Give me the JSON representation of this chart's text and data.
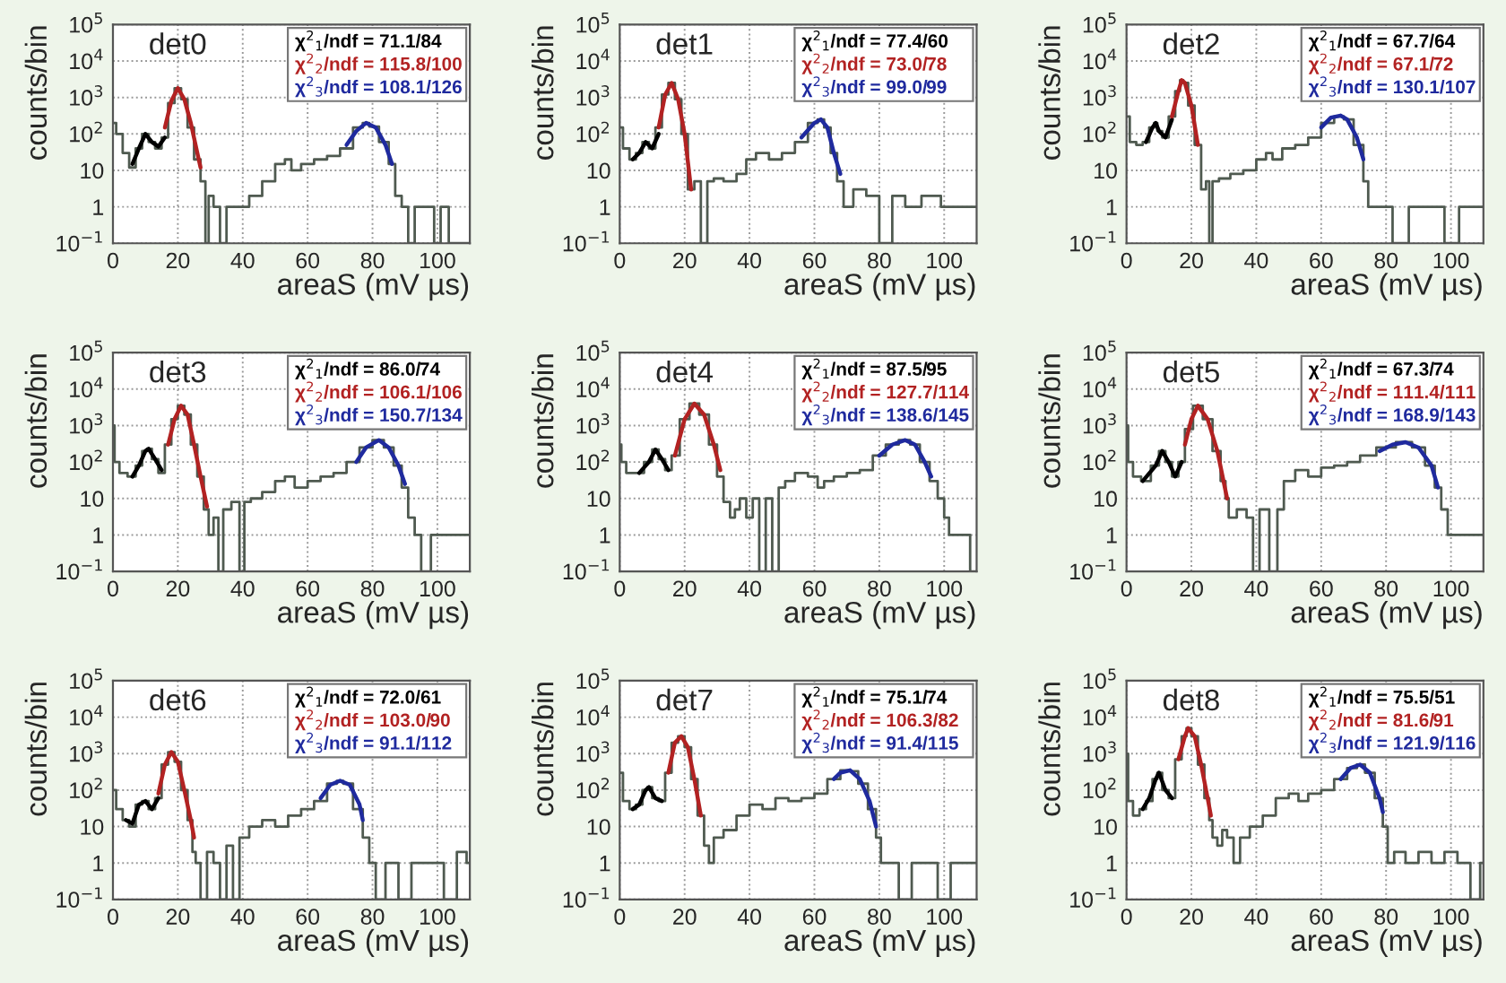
{
  "chart_data": [
    {
      "type": "line",
      "xlabel": "areaS (mV µs)",
      "ylabel": "counts/bin",
      "annotations": [
        "det0",
        "χ$^{2}$$_{1}$/ndf = 71.1/84",
        "χ$^{2}$$_{2}$/ndf = 115.8/100",
        "χ$^{2}$$_{3}$/ndf = 108.1/126"
      ],
      "log": "y",
      "xlim": [
        0,
        110
      ],
      "xticks": [
        0,
        20,
        40,
        60,
        80,
        100
      ],
      "ylim": [
        0.1,
        100000
      ],
      "yticks": [
        {
          "value": 0.1,
          "label": "10$^{−1}$"
        },
        1,
        10,
        {
          "value": 100,
          "label": "10$^{2}$"
        },
        {
          "value": 1000,
          "label": "10$^{3}$"
        },
        {
          "value": 10000,
          "label": "10$^{4}$"
        },
        {
          "value": 100000,
          "label": "10$^{5}$"
        }
      ],
      "grid": true,
      "series": [
        {
          "type": "step",
          "color": "#4f5a50",
          "x": [
            0,
            2,
            4,
            6,
            8,
            10,
            12,
            14,
            16,
            18,
            20,
            22,
            24,
            26,
            28,
            29,
            30,
            32,
            34,
            36,
            40,
            44,
            48,
            52,
            54,
            56,
            60,
            64,
            68,
            72,
            76,
            78,
            80,
            84,
            86,
            88,
            90,
            92,
            94,
            98,
            100,
            102,
            105,
            110
          ],
          "values": [
            200,
            100,
            30,
            12,
            40,
            100,
            60,
            40,
            80,
            700,
            1800,
            900,
            150,
            20,
            5,
            0.1,
            2,
            1,
            0.1,
            1,
            1,
            2,
            5,
            15,
            20,
            10,
            15,
            20,
            25,
            40,
            150,
            200,
            160,
            60,
            15,
            2,
            1,
            0.1,
            1,
            1,
            0.1,
            1,
            0.1,
            0.1
          ]
        },
        {
          "type": "line",
          "color": "#000000",
          "x": [
            6,
            8,
            10,
            12,
            14,
            16
          ],
          "values": [
            15,
            40,
            100,
            60,
            45,
            80
          ]
        },
        {
          "type": "line",
          "color": "#b22222",
          "x": [
            16,
            18,
            20,
            22,
            24,
            26,
            27
          ],
          "values": [
            150,
            800,
            1800,
            900,
            200,
            30,
            12
          ]
        },
        {
          "type": "line",
          "color": "#1f2a9e",
          "x": [
            72,
            75,
            78,
            81,
            84,
            86
          ],
          "values": [
            50,
            120,
            200,
            150,
            50,
            15
          ]
        }
      ]
    },
    {
      "type": "line",
      "xlabel": "areaS (mV µs)",
      "ylabel": "counts/bin",
      "annotations": [
        "det1",
        "χ$^{2}$$_{1}$/ndf = 77.4/60",
        "χ$^{2}$$_{2}$/ndf = 73.0/78",
        "χ$^{2}$$_{3}$/ndf = 99.0/99"
      ],
      "log": "y",
      "xlim": [
        0,
        110
      ],
      "xticks": [
        0,
        20,
        40,
        60,
        80,
        100
      ],
      "ylim": [
        0.1,
        100000
      ],
      "yticks": [
        {
          "value": 0.1,
          "label": "10$^{−1}$"
        },
        1,
        10,
        {
          "value": 100,
          "label": "10$^{2}$"
        },
        {
          "value": 1000,
          "label": "10$^{3}$"
        },
        {
          "value": 10000,
          "label": "10$^{4}$"
        },
        {
          "value": 100000,
          "label": "10$^{5}$"
        }
      ],
      "grid": true,
      "series": [
        {
          "type": "step",
          "color": "#4f5a50",
          "x": [
            0,
            2,
            4,
            6,
            8,
            10,
            12,
            14,
            16,
            18,
            20,
            22,
            24,
            26,
            28,
            30,
            34,
            38,
            40,
            44,
            48,
            52,
            56,
            60,
            62,
            64,
            66,
            68,
            70,
            74,
            78,
            82,
            86,
            90,
            96,
            102,
            106,
            110
          ],
          "values": [
            150,
            40,
            20,
            30,
            60,
            40,
            150,
            1200,
            2500,
            900,
            100,
            3,
            5,
            0.1,
            5,
            6,
            5,
            8,
            20,
            30,
            20,
            30,
            60,
            200,
            250,
            150,
            30,
            5,
            1,
            3,
            2,
            0.1,
            2,
            1,
            2,
            1,
            1,
            1
          ]
        },
        {
          "type": "line",
          "color": "#000000",
          "x": [
            4,
            6,
            8,
            10,
            12
          ],
          "values": [
            20,
            30,
            60,
            40,
            100
          ]
        },
        {
          "type": "line",
          "color": "#b22222",
          "x": [
            12,
            14,
            16,
            18,
            20,
            22
          ],
          "values": [
            150,
            1200,
            2500,
            900,
            100,
            3
          ]
        },
        {
          "type": "line",
          "color": "#1f2a9e",
          "x": [
            56,
            60,
            62,
            64,
            66,
            68
          ],
          "values": [
            80,
            200,
            250,
            150,
            30,
            8
          ]
        }
      ]
    },
    {
      "type": "line",
      "xlabel": "areaS (mV µs)",
      "ylabel": "counts/bin",
      "annotations": [
        "det2",
        "χ$^{2}$$_{1}$/ndf = 67.7/64",
        "χ$^{2}$$_{2}$/ndf = 67.1/72",
        "χ$^{2}$$_{3}$/ndf = 130.1/107"
      ],
      "log": "y",
      "xlim": [
        0,
        110
      ],
      "xticks": [
        0,
        20,
        40,
        60,
        80,
        100
      ],
      "ylim": [
        0.1,
        100000
      ],
      "yticks": [
        {
          "value": 0.1,
          "label": "10$^{−1}$"
        },
        1,
        10,
        {
          "value": 100,
          "label": "10$^{2}$"
        },
        {
          "value": 1000,
          "label": "10$^{3}$"
        },
        {
          "value": 10000,
          "label": "10$^{4}$"
        },
        {
          "value": 100000,
          "label": "10$^{5}$"
        }
      ],
      "grid": true,
      "series": [
        {
          "type": "step",
          "color": "#4f5a50",
          "x": [
            0,
            2,
            4,
            6,
            8,
            9,
            10,
            12,
            14,
            16,
            17,
            18,
            20,
            22,
            24,
            25,
            26,
            27,
            30,
            34,
            38,
            42,
            44,
            46,
            50,
            54,
            58,
            62,
            66,
            68,
            72,
            74,
            75,
            80,
            84,
            90,
            96,
            100,
            105,
            110
          ],
          "values": [
            300,
            60,
            50,
            60,
            150,
            200,
            120,
            80,
            300,
            1500,
            3000,
            2500,
            600,
            50,
            3,
            5,
            0.1,
            5,
            6,
            8,
            10,
            20,
            30,
            20,
            40,
            50,
            80,
            200,
            300,
            250,
            50,
            5,
            1,
            1,
            0.1,
            1,
            1,
            0.1,
            1,
            1
          ]
        },
        {
          "type": "line",
          "color": "#000000",
          "x": [
            6,
            8,
            9,
            10,
            12,
            14
          ],
          "values": [
            60,
            150,
            200,
            120,
            80,
            250
          ]
        },
        {
          "type": "line",
          "color": "#b22222",
          "x": [
            14,
            16,
            17,
            18,
            20,
            22
          ],
          "values": [
            300,
            1500,
            3000,
            2500,
            600,
            50
          ]
        },
        {
          "type": "line",
          "color": "#1f2a9e",
          "x": [
            60,
            63,
            66,
            68,
            71,
            73
          ],
          "values": [
            150,
            280,
            320,
            250,
            80,
            20
          ]
        }
      ]
    },
    {
      "type": "line",
      "xlabel": "areaS (mV µs)",
      "ylabel": "counts/bin",
      "annotations": [
        "det3",
        "χ$^{2}$$_{1}$/ndf = 86.0/74",
        "χ$^{2}$$_{2}$/ndf = 106.1/106",
        "χ$^{2}$$_{3}$/ndf = 150.7/134"
      ],
      "log": "y",
      "xlim": [
        0,
        110
      ],
      "xticks": [
        0,
        20,
        40,
        60,
        80,
        100
      ],
      "ylim": [
        0.1,
        100000
      ],
      "yticks": [
        {
          "value": 0.1,
          "label": "10$^{−1}$"
        },
        1,
        10,
        {
          "value": 100,
          "label": "10$^{2}$"
        },
        {
          "value": 1000,
          "label": "10$^{3}$"
        },
        {
          "value": 10000,
          "label": "10$^{4}$"
        },
        {
          "value": 100000,
          "label": "10$^{5}$"
        }
      ],
      "grid": true,
      "series": [
        {
          "type": "step",
          "color": "#4f5a50",
          "x": [
            0,
            1,
            3,
            6,
            8,
            10,
            11,
            13,
            15,
            17,
            19,
            21,
            23,
            25,
            27,
            29,
            30,
            32,
            33,
            35,
            38,
            40,
            41,
            44,
            48,
            52,
            54,
            58,
            62,
            66,
            70,
            74,
            78,
            82,
            85,
            88,
            90,
            92,
            94,
            96,
            100,
            104,
            108,
            110
          ],
          "values": [
            1000,
            100,
            50,
            40,
            80,
            200,
            230,
            120,
            50,
            300,
            1500,
            3500,
            2000,
            300,
            40,
            5,
            1,
            3,
            0.1,
            5,
            8,
            0.1,
            8,
            10,
            15,
            30,
            40,
            20,
            30,
            40,
            50,
            100,
            250,
            400,
            250,
            80,
            20,
            3,
            1,
            0.1,
            1,
            1,
            1,
            1
          ]
        },
        {
          "type": "line",
          "color": "#000000",
          "x": [
            6,
            8,
            10,
            11,
            13,
            15
          ],
          "values": [
            40,
            80,
            200,
            230,
            120,
            60
          ]
        },
        {
          "type": "line",
          "color": "#b22222",
          "x": [
            17,
            19,
            21,
            23,
            25,
            27,
            29
          ],
          "values": [
            300,
            1500,
            3500,
            2000,
            300,
            40,
            6
          ]
        },
        {
          "type": "line",
          "color": "#1f2a9e",
          "x": [
            75,
            78,
            82,
            85,
            88,
            90
          ],
          "values": [
            100,
            250,
            400,
            250,
            80,
            25
          ]
        }
      ]
    },
    {
      "type": "line",
      "xlabel": "areaS (mV µs)",
      "ylabel": "counts/bin",
      "annotations": [
        "det4",
        "χ$^{2}$$_{1}$/ndf = 87.5/95",
        "χ$^{2}$$_{2}$/ndf = 127.7/114",
        "χ$^{2}$$_{3}$/ndf = 138.6/145"
      ],
      "log": "y",
      "xlim": [
        0,
        110
      ],
      "xticks": [
        0,
        20,
        40,
        60,
        80,
        100
      ],
      "ylim": [
        0.1,
        100000
      ],
      "yticks": [
        {
          "value": 0.1,
          "label": "10$^{−1}$"
        },
        1,
        10,
        {
          "value": 100,
          "label": "10$^{2}$"
        },
        {
          "value": 1000,
          "label": "10$^{3}$"
        },
        {
          "value": 10000,
          "label": "10$^{4}$"
        },
        {
          "value": 100000,
          "label": "10$^{5}$"
        }
      ],
      "grid": true,
      "series": [
        {
          "type": "step",
          "color": "#4f5a50",
          "x": [
            0,
            1,
            3,
            6,
            9,
            11,
            13,
            15,
            17,
            20,
            23,
            26,
            29,
            31,
            33,
            35,
            36,
            38,
            40,
            42,
            44,
            46,
            48,
            50,
            52,
            56,
            60,
            62,
            64,
            68,
            72,
            76,
            80,
            84,
            88,
            91,
            94,
            97,
            99,
            101,
            102,
            106,
            110
          ],
          "values": [
            300,
            100,
            50,
            50,
            100,
            220,
            120,
            60,
            150,
            1500,
            4000,
            2000,
            300,
            40,
            8,
            3,
            5,
            10,
            3,
            10,
            0.1,
            10,
            0.1,
            20,
            30,
            50,
            40,
            20,
            30,
            40,
            50,
            60,
            150,
            300,
            400,
            300,
            100,
            30,
            10,
            3,
            1,
            1,
            0.1
          ]
        },
        {
          "type": "line",
          "color": "#000000",
          "x": [
            6,
            9,
            11,
            13,
            15
          ],
          "values": [
            50,
            100,
            220,
            120,
            60
          ]
        },
        {
          "type": "line",
          "color": "#b22222",
          "x": [
            17,
            20,
            23,
            26,
            29,
            31
          ],
          "values": [
            150,
            1500,
            4000,
            2000,
            300,
            60
          ]
        },
        {
          "type": "line",
          "color": "#1f2a9e",
          "x": [
            80,
            84,
            88,
            91,
            94,
            96
          ],
          "values": [
            150,
            300,
            400,
            300,
            100,
            40
          ]
        }
      ]
    },
    {
      "type": "line",
      "xlabel": "areaS (mV µs)",
      "ylabel": "counts/bin",
      "annotations": [
        "det5",
        "χ$^{2}$$_{1}$/ndf = 67.3/74",
        "χ$^{2}$$_{2}$/ndf = 111.4/111",
        "χ$^{2}$$_{3}$/ndf = 168.9/143"
      ],
      "log": "y",
      "xlim": [
        0,
        110
      ],
      "xticks": [
        0,
        20,
        40,
        60,
        80,
        100
      ],
      "ylim": [
        0.1,
        100000
      ],
      "yticks": [
        {
          "value": 0.1,
          "label": "10$^{−1}$"
        },
        1,
        10,
        {
          "value": 100,
          "label": "10$^{2}$"
        },
        {
          "value": 1000,
          "label": "10$^{3}$"
        },
        {
          "value": 10000,
          "label": "10$^{4}$"
        },
        {
          "value": 100000,
          "label": "10$^{5}$"
        }
      ],
      "grid": true,
      "series": [
        {
          "type": "step",
          "color": "#4f5a50",
          "x": [
            0,
            1,
            3,
            6,
            9,
            11,
            13,
            15,
            17,
            19,
            22,
            25,
            28,
            30,
            31,
            32,
            36,
            38,
            40,
            42,
            46,
            47,
            50,
            54,
            58,
            62,
            66,
            70,
            74,
            80,
            86,
            90,
            94,
            96,
            98,
            100,
            104,
            108,
            110
          ],
          "values": [
            1000,
            100,
            40,
            30,
            80,
            200,
            100,
            40,
            100,
            800,
            3500,
            1500,
            200,
            30,
            10,
            3,
            5,
            3,
            0.1,
            5,
            0.1,
            5,
            30,
            60,
            40,
            70,
            80,
            100,
            150,
            250,
            350,
            250,
            80,
            20,
            5,
            1,
            1,
            1,
            1
          ]
        },
        {
          "type": "line",
          "color": "#000000",
          "x": [
            5,
            9,
            11,
            13,
            15,
            17
          ],
          "values": [
            30,
            80,
            200,
            100,
            40,
            100
          ]
        },
        {
          "type": "line",
          "color": "#b22222",
          "x": [
            18,
            20,
            22,
            25,
            28,
            31
          ],
          "values": [
            300,
            1500,
            3500,
            1500,
            200,
            10
          ]
        },
        {
          "type": "line",
          "color": "#1f2a9e",
          "x": [
            78,
            82,
            86,
            90,
            94,
            96
          ],
          "values": [
            200,
            300,
            350,
            250,
            80,
            20
          ]
        }
      ]
    },
    {
      "type": "line",
      "xlabel": "areaS (mV µs)",
      "ylabel": "counts/bin",
      "annotations": [
        "det6",
        "χ$^{2}$$_{1}$/ndf = 72.0/61",
        "χ$^{2}$$_{2}$/ndf = 103.0/90",
        "χ$^{2}$$_{3}$/ndf = 91.1/112"
      ],
      "log": "y",
      "xlim": [
        0,
        110
      ],
      "xticks": [
        0,
        20,
        40,
        60,
        80,
        100
      ],
      "ylim": [
        0.1,
        100000
      ],
      "yticks": [
        {
          "value": 0.1,
          "label": "10$^{−1}$"
        },
        1,
        10,
        {
          "value": 100,
          "label": "10$^{2}$"
        },
        {
          "value": 1000,
          "label": "10$^{3}$"
        },
        {
          "value": 10000,
          "label": "10$^{4}$"
        },
        {
          "value": 100000,
          "label": "10$^{5}$"
        }
      ],
      "grid": true,
      "series": [
        {
          "type": "step",
          "color": "#4f5a50",
          "x": [
            0,
            2,
            4,
            6,
            8,
            10,
            12,
            14,
            16,
            18,
            20,
            22,
            24,
            25,
            26,
            28,
            30,
            32,
            34,
            36,
            38,
            40,
            44,
            48,
            52,
            56,
            60,
            64,
            68,
            70,
            72,
            76,
            78,
            80,
            82,
            86,
            90,
            94,
            100,
            104,
            108,
            110
          ],
          "values": [
            100,
            30,
            15,
            10,
            40,
            50,
            30,
            60,
            500,
            1100,
            600,
            100,
            15,
            2,
            1,
            0.1,
            2,
            1,
            0.1,
            3,
            0.1,
            5,
            10,
            15,
            10,
            20,
            30,
            50,
            150,
            180,
            150,
            30,
            5,
            1,
            0.1,
            1,
            0.1,
            1,
            1,
            0.1,
            2,
            1
          ]
        },
        {
          "type": "line",
          "color": "#000000",
          "x": [
            4,
            6,
            8,
            10,
            12,
            14
          ],
          "values": [
            15,
            12,
            40,
            50,
            30,
            60
          ]
        },
        {
          "type": "line",
          "color": "#b22222",
          "x": [
            14,
            16,
            18,
            20,
            22,
            24,
            25
          ],
          "values": [
            80,
            500,
            1100,
            600,
            100,
            15,
            5
          ]
        },
        {
          "type": "line",
          "color": "#1f2a9e",
          "x": [
            64,
            67,
            70,
            73,
            76,
            77
          ],
          "values": [
            60,
            140,
            180,
            140,
            40,
            15
          ]
        }
      ]
    },
    {
      "type": "line",
      "xlabel": "areaS (mV µs)",
      "ylabel": "counts/bin",
      "annotations": [
        "det7",
        "χ$^{2}$$_{1}$/ndf = 75.1/74",
        "χ$^{2}$$_{2}$/ndf = 106.3/82",
        "χ$^{2}$$_{3}$/ndf = 91.4/115"
      ],
      "log": "y",
      "xlim": [
        0,
        110
      ],
      "xticks": [
        0,
        20,
        40,
        60,
        80,
        100
      ],
      "ylim": [
        0.1,
        100000
      ],
      "yticks": [
        {
          "value": 0.1,
          "label": "10$^{−1}$"
        },
        1,
        10,
        {
          "value": 100,
          "label": "10$^{2}$"
        },
        {
          "value": 1000,
          "label": "10$^{3}$"
        },
        {
          "value": 10000,
          "label": "10$^{4}$"
        },
        {
          "value": 100000,
          "label": "10$^{5}$"
        }
      ],
      "grid": true,
      "series": [
        {
          "type": "step",
          "color": "#4f5a50",
          "x": [
            0,
            2,
            4,
            6,
            8,
            9,
            11,
            13,
            15,
            17,
            19,
            21,
            23,
            25,
            27,
            28,
            30,
            34,
            38,
            42,
            46,
            50,
            54,
            58,
            62,
            66,
            70,
            72,
            75,
            78,
            80,
            81,
            84,
            88,
            92,
            96,
            100,
            104,
            110
          ],
          "values": [
            300,
            50,
            30,
            40,
            100,
            120,
            60,
            50,
            300,
            2000,
            3000,
            1500,
            200,
            20,
            3,
            1,
            5,
            8,
            20,
            40,
            30,
            60,
            50,
            60,
            80,
            200,
            350,
            330,
            150,
            30,
            5,
            1,
            1,
            0.1,
            1,
            1,
            0.1,
            1,
            1
          ]
        },
        {
          "type": "line",
          "color": "#000000",
          "x": [
            4,
            6,
            8,
            9,
            11,
            13
          ],
          "values": [
            30,
            40,
            100,
            120,
            60,
            50
          ]
        },
        {
          "type": "line",
          "color": "#b22222",
          "x": [
            15,
            17,
            19,
            21,
            23,
            25
          ],
          "values": [
            300,
            2000,
            3000,
            1500,
            200,
            20
          ]
        },
        {
          "type": "line",
          "color": "#1f2a9e",
          "x": [
            66,
            68,
            71,
            74,
            77,
            79
          ],
          "values": [
            200,
            300,
            350,
            200,
            50,
            10
          ]
        }
      ]
    },
    {
      "type": "line",
      "xlabel": "areaS (mV µs)",
      "ylabel": "counts/bin",
      "annotations": [
        "det8",
        "χ$^{2}$$_{1}$/ndf = 75.5/51",
        "χ$^{2}$$_{2}$/ndf = 81.6/91",
        "χ$^{2}$$_{3}$/ndf = 121.9/116"
      ],
      "log": "y",
      "xlim": [
        0,
        110
      ],
      "xticks": [
        0,
        20,
        40,
        60,
        80,
        100
      ],
      "ylim": [
        0.1,
        100000
      ],
      "yticks": [
        {
          "value": 0.1,
          "label": "10$^{−1}$"
        },
        1,
        10,
        {
          "value": 100,
          "label": "10$^{2}$"
        },
        {
          "value": 1000,
          "label": "10$^{3}$"
        },
        {
          "value": 10000,
          "label": "10$^{4}$"
        },
        {
          "value": 100000,
          "label": "10$^{5}$"
        }
      ],
      "grid": true,
      "series": [
        {
          "type": "step",
          "color": "#4f5a50",
          "x": [
            0,
            1,
            3,
            5,
            7,
            9,
            10,
            12,
            14,
            16,
            18,
            19,
            21,
            23,
            25,
            26,
            27,
            29,
            30,
            32,
            34,
            36,
            40,
            44,
            48,
            52,
            54,
            58,
            62,
            66,
            70,
            72,
            75,
            78,
            80,
            81,
            84,
            88,
            92,
            96,
            100,
            104,
            108,
            110
          ],
          "values": [
            1000,
            50,
            20,
            30,
            50,
            200,
            300,
            100,
            60,
            700,
            3000,
            5000,
            3000,
            500,
            60,
            15,
            5,
            3,
            8,
            5,
            1,
            5,
            10,
            20,
            60,
            80,
            50,
            80,
            100,
            200,
            400,
            500,
            300,
            60,
            10,
            1,
            2,
            1,
            2,
            1,
            2,
            1,
            0.1,
            1
          ]
        },
        {
          "type": "line",
          "color": "#000000",
          "x": [
            5,
            7,
            9,
            10,
            12,
            14
          ],
          "values": [
            30,
            60,
            200,
            300,
            100,
            60
          ]
        },
        {
          "type": "line",
          "color": "#b22222",
          "x": [
            16,
            18,
            19,
            21,
            23,
            25,
            26
          ],
          "values": [
            700,
            3000,
            5000,
            3000,
            500,
            60,
            20
          ]
        },
        {
          "type": "line",
          "color": "#1f2a9e",
          "x": [
            66,
            69,
            72,
            75,
            78,
            79
          ],
          "values": [
            200,
            400,
            500,
            300,
            60,
            25
          ]
        }
      ]
    }
  ]
}
